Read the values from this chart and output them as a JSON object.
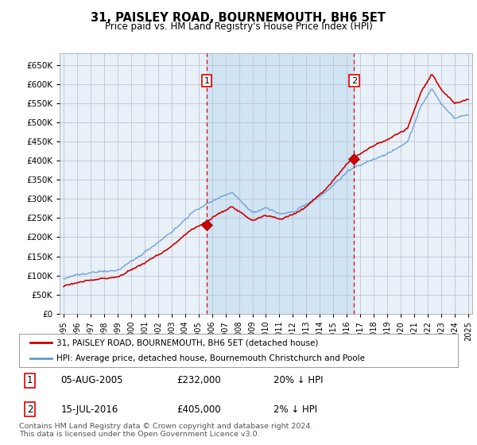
{
  "title": "31, PAISLEY ROAD, BOURNEMOUTH, BH6 5ET",
  "subtitle": "Price paid vs. HM Land Registry's House Price Index (HPI)",
  "legend_line1": "31, PAISLEY ROAD, BOURNEMOUTH, BH6 5ET (detached house)",
  "legend_line2": "HPI: Average price, detached house, Bournemouth Christchurch and Poole",
  "annotation1_date": "05-AUG-2005",
  "annotation1_price": "£232,000",
  "annotation1_hpi": "20% ↓ HPI",
  "annotation1_year": 2005.6,
  "annotation1_value": 232000,
  "annotation2_date": "15-JUL-2016",
  "annotation2_price": "£405,000",
  "annotation2_hpi": "2% ↓ HPI",
  "annotation2_year": 2016.54,
  "annotation2_value": 405000,
  "footer": "Contains HM Land Registry data © Crown copyright and database right 2024.\nThis data is licensed under the Open Government Licence v3.0.",
  "hpi_color": "#6699cc",
  "property_color": "#cc0000",
  "bg_color": "#e8f0f8",
  "shade_color": "#d0e4f4",
  "ylim_min": 0,
  "ylim_max": 680000,
  "xmin": 1994.7,
  "xmax": 2025.3
}
